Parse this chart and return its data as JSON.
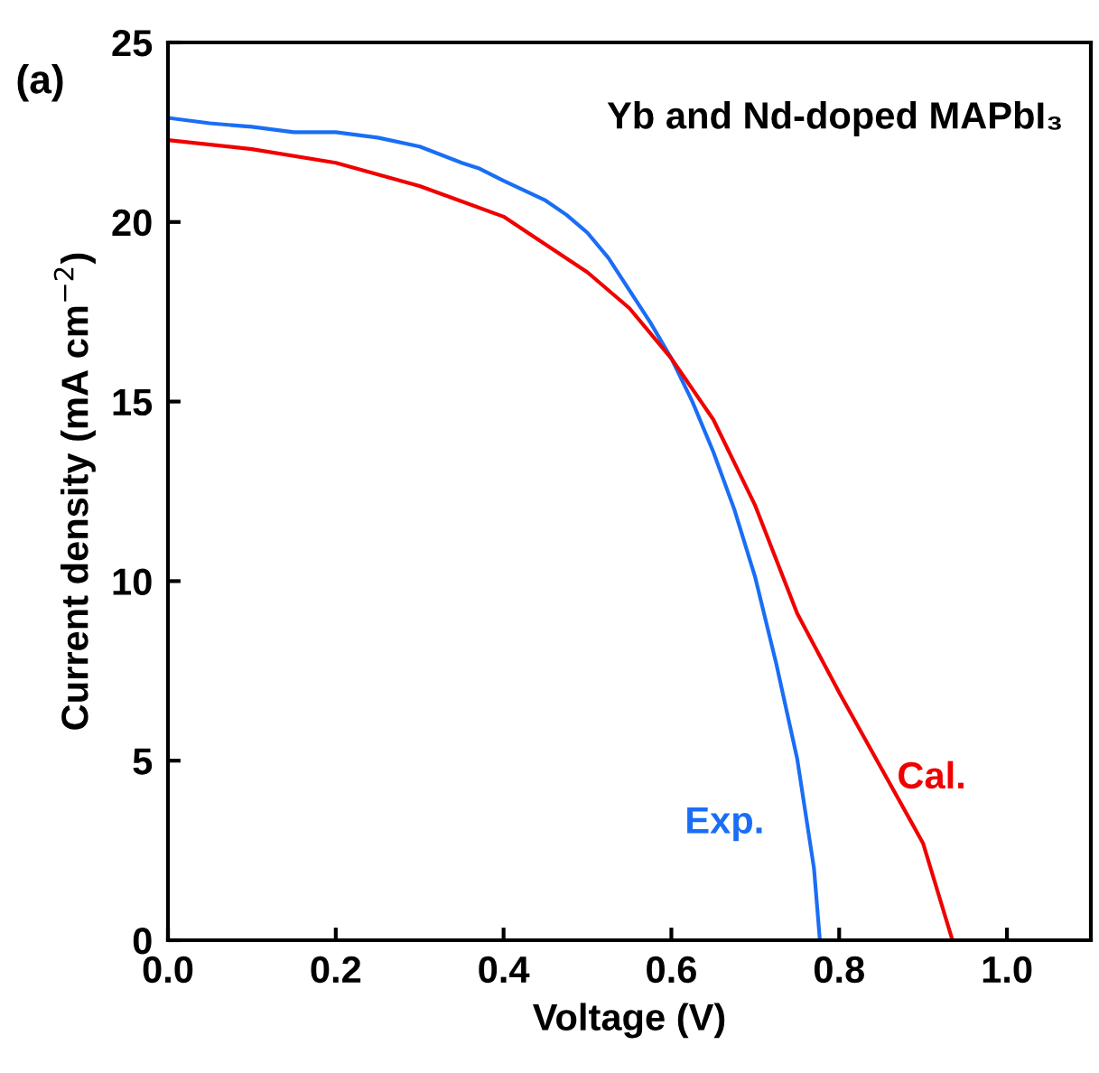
{
  "chart_data": {
    "type": "line",
    "title": "Yb and Nd-doped MAPbI₃",
    "xlabel": "Voltage (V)",
    "ylabel": "Current density (mA cm$^{−2}$)",
    "annotations": [
      "(a)"
    ],
    "legend": false,
    "grid": false,
    "series": [
      {
        "name": "Exp.",
        "color": "#1a6ef5",
        "x": [
          0,
          0.05,
          0.1,
          0.15,
          0.2,
          0.25,
          0.3,
          0.35,
          0.37,
          0.4,
          0.45,
          0.475,
          0.5,
          0.525,
          0.55,
          0.575,
          0.6,
          0.625,
          0.65,
          0.675,
          0.7,
          0.725,
          0.75,
          0.77,
          0.777
        ],
        "values": [
          22.9,
          22.75,
          22.65,
          22.5,
          22.5,
          22.35,
          22.1,
          21.65,
          21.5,
          21.15,
          20.6,
          20.2,
          19.7,
          19.0,
          18.1,
          17.2,
          16.2,
          15.0,
          13.6,
          12.0,
          10.1,
          7.7,
          5.05,
          2.0,
          0
        ]
      },
      {
        "name": "Cal.",
        "color": "#f00000",
        "x": [
          0,
          0.1,
          0.2,
          0.3,
          0.4,
          0.5,
          0.55,
          0.6,
          0.65,
          0.7,
          0.75,
          0.8,
          0.85,
          0.9,
          0.935
        ],
        "values": [
          22.28,
          22.03,
          21.65,
          21.0,
          20.15,
          18.6,
          17.6,
          16.2,
          14.5,
          12.1,
          9.1,
          6.9,
          4.8,
          2.7,
          0
        ]
      }
    ],
    "xlim": [
      0,
      1.1
    ],
    "xticks": [
      {
        "value": 0,
        "label": "0.0"
      },
      0.2,
      0.4,
      0.6,
      0.8,
      {
        "value": 1,
        "label": "1.0"
      }
    ],
    "ylim": [
      0,
      25
    ],
    "yticks": [
      0,
      5,
      10,
      15,
      20,
      25
    ]
  }
}
